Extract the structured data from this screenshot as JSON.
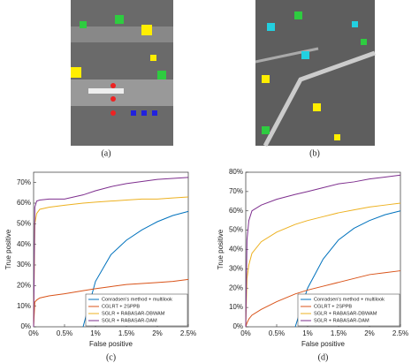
{
  "image_captions": [
    "(a)",
    "(b)"
  ],
  "chart_data": [
    {
      "type": "line",
      "caption": "(c)",
      "x_label": "False positive",
      "y_label": "True positive",
      "legend": "lower right",
      "x": [
        0,
        0.02,
        0.05,
        0.1,
        0.25,
        0.5,
        0.8,
        1,
        1.25,
        1.5,
        1.75,
        2,
        2.25,
        2.5
      ],
      "xlim": [
        0,
        2.5
      ],
      "xticks": [
        {
          "value": 0,
          "label": "0%"
        },
        {
          "value": 0.5,
          "label": "0.5%"
        },
        {
          "value": 1,
          "label": "1%"
        },
        {
          "value": 1.5,
          "label": "1.5%"
        },
        {
          "value": 2,
          "label": "2%"
        },
        {
          "value": 2.5,
          "label": "2.5%"
        }
      ],
      "ylim": [
        0,
        75
      ],
      "yticks": [
        {
          "value": 0,
          "label": "0%"
        },
        {
          "value": 10,
          "label": "10%"
        },
        {
          "value": 20,
          "label": "20%"
        },
        {
          "value": 30,
          "label": "30%"
        },
        {
          "value": 40,
          "label": "40%"
        },
        {
          "value": 50,
          "label": "50%"
        },
        {
          "value": 60,
          "label": "60%"
        },
        {
          "value": 70,
          "label": "70%"
        }
      ],
      "series": [
        {
          "name": "Conradsen's method + multilook",
          "color": "#0072bd",
          "values": [
            null,
            null,
            null,
            null,
            null,
            null,
            0,
            22,
            35,
            42,
            47,
            51,
            54,
            56
          ]
        },
        {
          "name": "CGLRT + 2SPPB",
          "color": "#d95319",
          "values": [
            0,
            12,
            13,
            14,
            15,
            16,
            17.5,
            18.5,
            19.5,
            20.5,
            21,
            21.5,
            22,
            23
          ]
        },
        {
          "name": "SGLR + RABASAR-DBWAM",
          "color": "#edb120",
          "values": [
            0,
            50,
            55,
            57,
            58,
            59,
            60,
            60.5,
            61,
            61.5,
            62,
            62,
            62.5,
            63
          ]
        },
        {
          "name": "SGLR + RABASAR-DAM",
          "color": "#7e2f8e",
          "values": [
            0,
            58,
            61,
            61.5,
            62,
            62,
            64,
            66,
            68,
            69.5,
            70.5,
            71.5,
            72,
            72.5
          ]
        }
      ]
    },
    {
      "type": "line",
      "caption": "(d)",
      "x_label": "False positive",
      "y_label": "True positive",
      "legend": "lower right",
      "x": [
        0,
        0.02,
        0.05,
        0.1,
        0.25,
        0.5,
        0.8,
        1,
        1.25,
        1.5,
        1.75,
        2,
        2.25,
        2.5
      ],
      "xlim": [
        0,
        2.5
      ],
      "xticks": [
        {
          "value": 0,
          "label": "0%"
        },
        {
          "value": 0.5,
          "label": "0.5%"
        },
        {
          "value": 1,
          "label": "1%"
        },
        {
          "value": 1.5,
          "label": "1.5%"
        },
        {
          "value": 2,
          "label": "2%"
        },
        {
          "value": 2.5,
          "label": "2.5%"
        }
      ],
      "ylim": [
        0,
        80
      ],
      "yticks": [
        {
          "value": 0,
          "label": "0%"
        },
        {
          "value": 10,
          "label": "10%"
        },
        {
          "value": 20,
          "label": "20%"
        },
        {
          "value": 30,
          "label": "30%"
        },
        {
          "value": 40,
          "label": "40%"
        },
        {
          "value": 50,
          "label": "50%"
        },
        {
          "value": 60,
          "label": "60%"
        },
        {
          "value": 70,
          "label": "70%"
        },
        {
          "value": 80,
          "label": "80%"
        }
      ],
      "series": [
        {
          "name": "Conradsen's method + multilook",
          "color": "#0072bd",
          "values": [
            null,
            null,
            null,
            null,
            null,
            null,
            0,
            20,
            35,
            45,
            51,
            55,
            58,
            60
          ]
        },
        {
          "name": "CGLRT + 2SPPB",
          "color": "#d95319",
          "values": [
            0,
            2,
            4,
            6,
            9,
            13,
            17,
            19,
            21,
            23,
            25,
            27,
            28,
            29
          ]
        },
        {
          "name": "SGLR + RABASAR-DBWAM",
          "color": "#edb120",
          "values": [
            0,
            25,
            32,
            38,
            44,
            49,
            53,
            55,
            57,
            59,
            60.5,
            62,
            63,
            64
          ]
        },
        {
          "name": "SGLR + RABASAR-DAM",
          "color": "#7e2f8e",
          "values": [
            0,
            45,
            55,
            60,
            63,
            66,
            68.5,
            70,
            72,
            74,
            75,
            76.5,
            77.5,
            78.5
          ]
        }
      ]
    }
  ]
}
